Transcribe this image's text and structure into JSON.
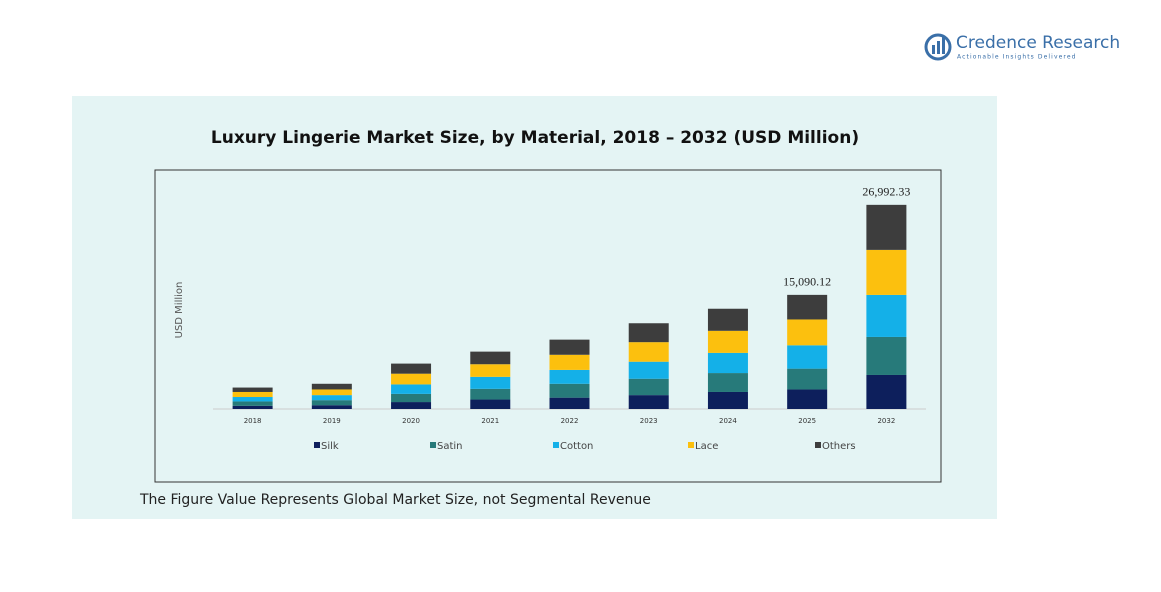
{
  "logo": {
    "name": "Credence Research",
    "tagline": "Actionable Insights Delivered"
  },
  "chart_data": {
    "type": "bar",
    "stacked": true,
    "title": "Luxury Lingerie Market Size, by Material, 2018 – 2032 (USD Million)",
    "y_label": "USD Million",
    "categories": [
      "2018",
      "2019",
      "2020",
      "2021",
      "2022",
      "2023",
      "2024",
      "2025",
      "2032"
    ],
    "series": [
      {
        "name": "Silk",
        "color": "#0d1f5c",
        "values": [
          417,
          500,
          917,
          1251,
          1501,
          1834,
          2251,
          2584.5,
          4498.6
        ]
      },
      {
        "name": "Satin",
        "color": "#277a7a",
        "values": [
          584,
          667,
          1084,
          1417,
          1834,
          2168,
          2501,
          2751.2,
          5027.9
        ]
      },
      {
        "name": "Cotton",
        "color": "#14b0e8",
        "values": [
          584,
          667,
          1251,
          1584,
          1834,
          2251,
          2668,
          3084.7,
          5557.1
        ]
      },
      {
        "name": "Lace",
        "color": "#fcc00e",
        "values": [
          667,
          750,
          1417,
          1667,
          2001,
          2584,
          2918,
          3418.2,
          5954.0
        ]
      },
      {
        "name": "Others",
        "color": "#3d3d3d",
        "values": [
          584,
          750,
          1334,
          1667,
          2001,
          2501,
          2918,
          3251.52,
          5954.73
        ]
      }
    ],
    "totals": [
      null,
      null,
      null,
      null,
      null,
      null,
      null,
      15090.12,
      26992.33
    ],
    "total_labels": [
      null,
      null,
      null,
      null,
      null,
      null,
      null,
      "15,090.12",
      "26,992.33"
    ],
    "ylim": [
      0,
      31600
    ]
  },
  "footnote": "The Figure Value Represents Global Market Size, not Segmental Revenue"
}
